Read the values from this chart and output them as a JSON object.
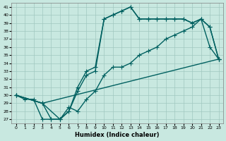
{
  "xlabel": "Humidex (Indice chaleur)",
  "ylabel": "",
  "bg_color": "#c8e8e0",
  "grid_color": "#a0c8c0",
  "line_color": "#006060",
  "xlim": [
    -0.5,
    23.5
  ],
  "ylim": [
    26.5,
    41.5
  ],
  "xticks": [
    0,
    1,
    2,
    3,
    4,
    5,
    6,
    7,
    8,
    9,
    10,
    11,
    12,
    13,
    14,
    15,
    16,
    17,
    18,
    19,
    20,
    21,
    22,
    23
  ],
  "yticks": [
    27,
    28,
    29,
    30,
    31,
    32,
    33,
    34,
    35,
    36,
    37,
    38,
    39,
    40,
    41
  ],
  "line1_x": [
    0,
    1,
    2,
    3,
    4,
    5,
    6,
    7,
    8,
    9,
    10,
    11,
    12,
    13,
    14,
    15,
    16,
    17,
    18,
    19,
    20,
    21,
    22,
    23
  ],
  "line1_y": [
    30.0,
    29.5,
    29.5,
    27.0,
    27.0,
    27.0,
    28.0,
    30.5,
    32.5,
    33.0,
    39.5,
    40.0,
    40.5,
    41.0,
    39.5,
    39.5,
    39.5,
    39.5,
    39.5,
    39.5,
    39.0,
    39.5,
    38.5,
    34.5
  ],
  "line2_x": [
    0,
    3,
    4,
    5,
    6,
    7,
    8,
    9,
    10,
    11,
    12,
    13,
    14,
    15,
    16,
    17,
    18,
    19,
    20,
    21,
    22,
    23
  ],
  "line2_y": [
    30.0,
    29.0,
    27.0,
    27.0,
    28.0,
    31.0,
    33.0,
    33.5,
    39.5,
    40.0,
    40.5,
    41.0,
    39.5,
    39.5,
    39.5,
    39.5,
    39.5,
    39.5,
    39.0,
    39.5,
    38.5,
    34.5
  ],
  "line3_x": [
    0,
    3,
    5,
    6,
    7,
    8,
    9,
    10,
    11,
    12,
    13,
    14,
    15,
    16,
    17,
    18,
    19,
    20,
    21,
    22,
    23
  ],
  "line3_y": [
    30.0,
    29.0,
    27.0,
    28.5,
    28.0,
    29.5,
    30.5,
    32.5,
    33.5,
    33.5,
    34.0,
    35.0,
    35.5,
    36.0,
    37.0,
    37.5,
    38.0,
    38.5,
    39.5,
    36.0,
    34.5
  ],
  "line4_x": [
    0,
    3,
    23
  ],
  "line4_y": [
    30.0,
    29.0,
    34.5
  ],
  "marker_size": 3,
  "linewidth": 1.0
}
